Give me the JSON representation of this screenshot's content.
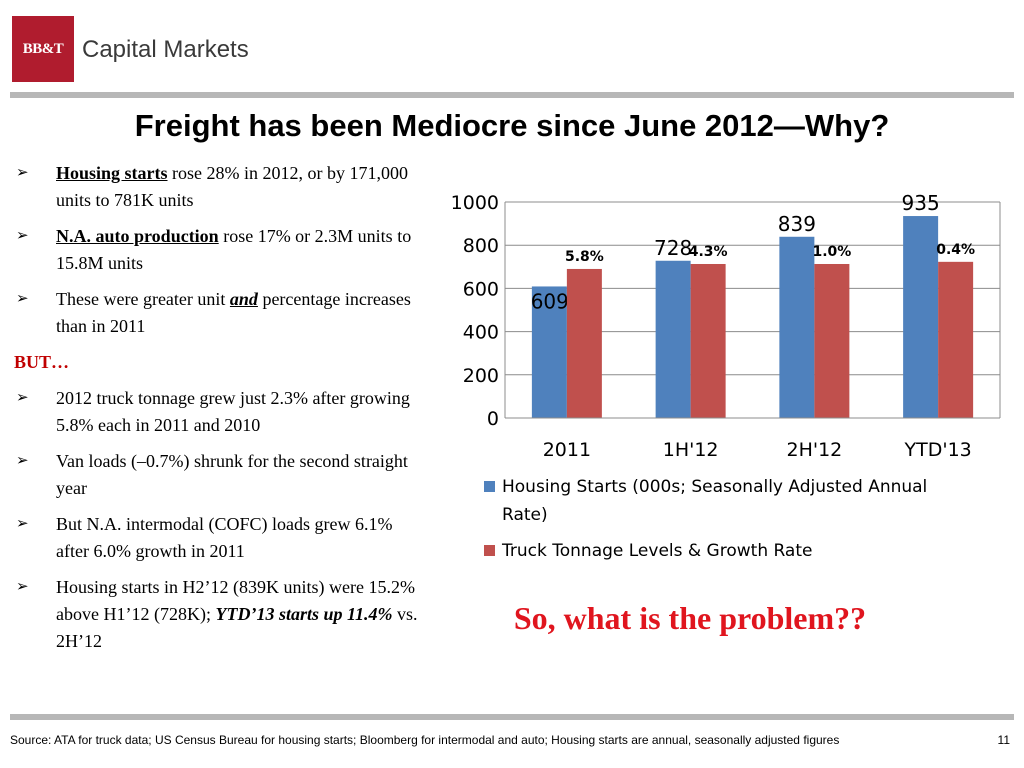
{
  "header": {
    "logo_text": "BB&T",
    "brand": "Capital Markets"
  },
  "title": "Freight has been Mediocre since June 2012—Why?",
  "bullets": [
    {
      "bold": "Housing starts",
      "rest": " rose 28% in 2012, or by 171,000 units to 781K units"
    },
    {
      "bold": "N.A. auto production",
      "rest": " rose 17% or 2.3M units to 15.8M units"
    },
    {
      "pre": "These were greater unit ",
      "emph": "and",
      "post": " percentage increases than in 2011"
    }
  ],
  "but_label": "BUT…",
  "bullets2": [
    {
      "text": "2012 truck tonnage grew just 2.3% after growing 5.8% each in 2011 and 2010"
    },
    {
      "text": "Van loads (–0.7%) shrunk for the second straight year"
    },
    {
      "text": "But N.A. intermodal (COFC) loads grew 6.1% after 6.0% growth in 2011"
    },
    {
      "pre": "Housing starts in H2’12 (839K units) were 15.2% above H1’12 (728K); ",
      "emph": "YTD’13 starts up 11.4%",
      "post": " vs. 2H’12"
    }
  ],
  "chart_data": {
    "type": "bar",
    "categories": [
      "2011",
      "1H'12",
      "2H'12",
      "YTD'13"
    ],
    "ylim": [
      0,
      1000
    ],
    "yticks": [
      0,
      200,
      400,
      600,
      800,
      1000
    ],
    "grid": true,
    "legend_position": "bottom",
    "series": [
      {
        "name": "Housing Starts (000s; Seasonally Adjusted Annual Rate)",
        "values": [
          609,
          728,
          839,
          935
        ],
        "labels": [
          "609",
          "728",
          "839",
          "935"
        ],
        "color": "#4f81bd"
      },
      {
        "name": "Truck Tonnage Levels & Growth Rate",
        "values": [
          690,
          713,
          713,
          723
        ],
        "labels": [
          "5.8%",
          "4.3%",
          "1.0%",
          "0.4%"
        ],
        "color": "#c0504d"
      }
    ]
  },
  "question": "So, what is the problem??",
  "footer": "Source: ATA for truck data; US Census Bureau for housing starts; Bloomberg for intermodal and auto; Housing starts are annual, seasonally adjusted figures",
  "page_number": "11"
}
